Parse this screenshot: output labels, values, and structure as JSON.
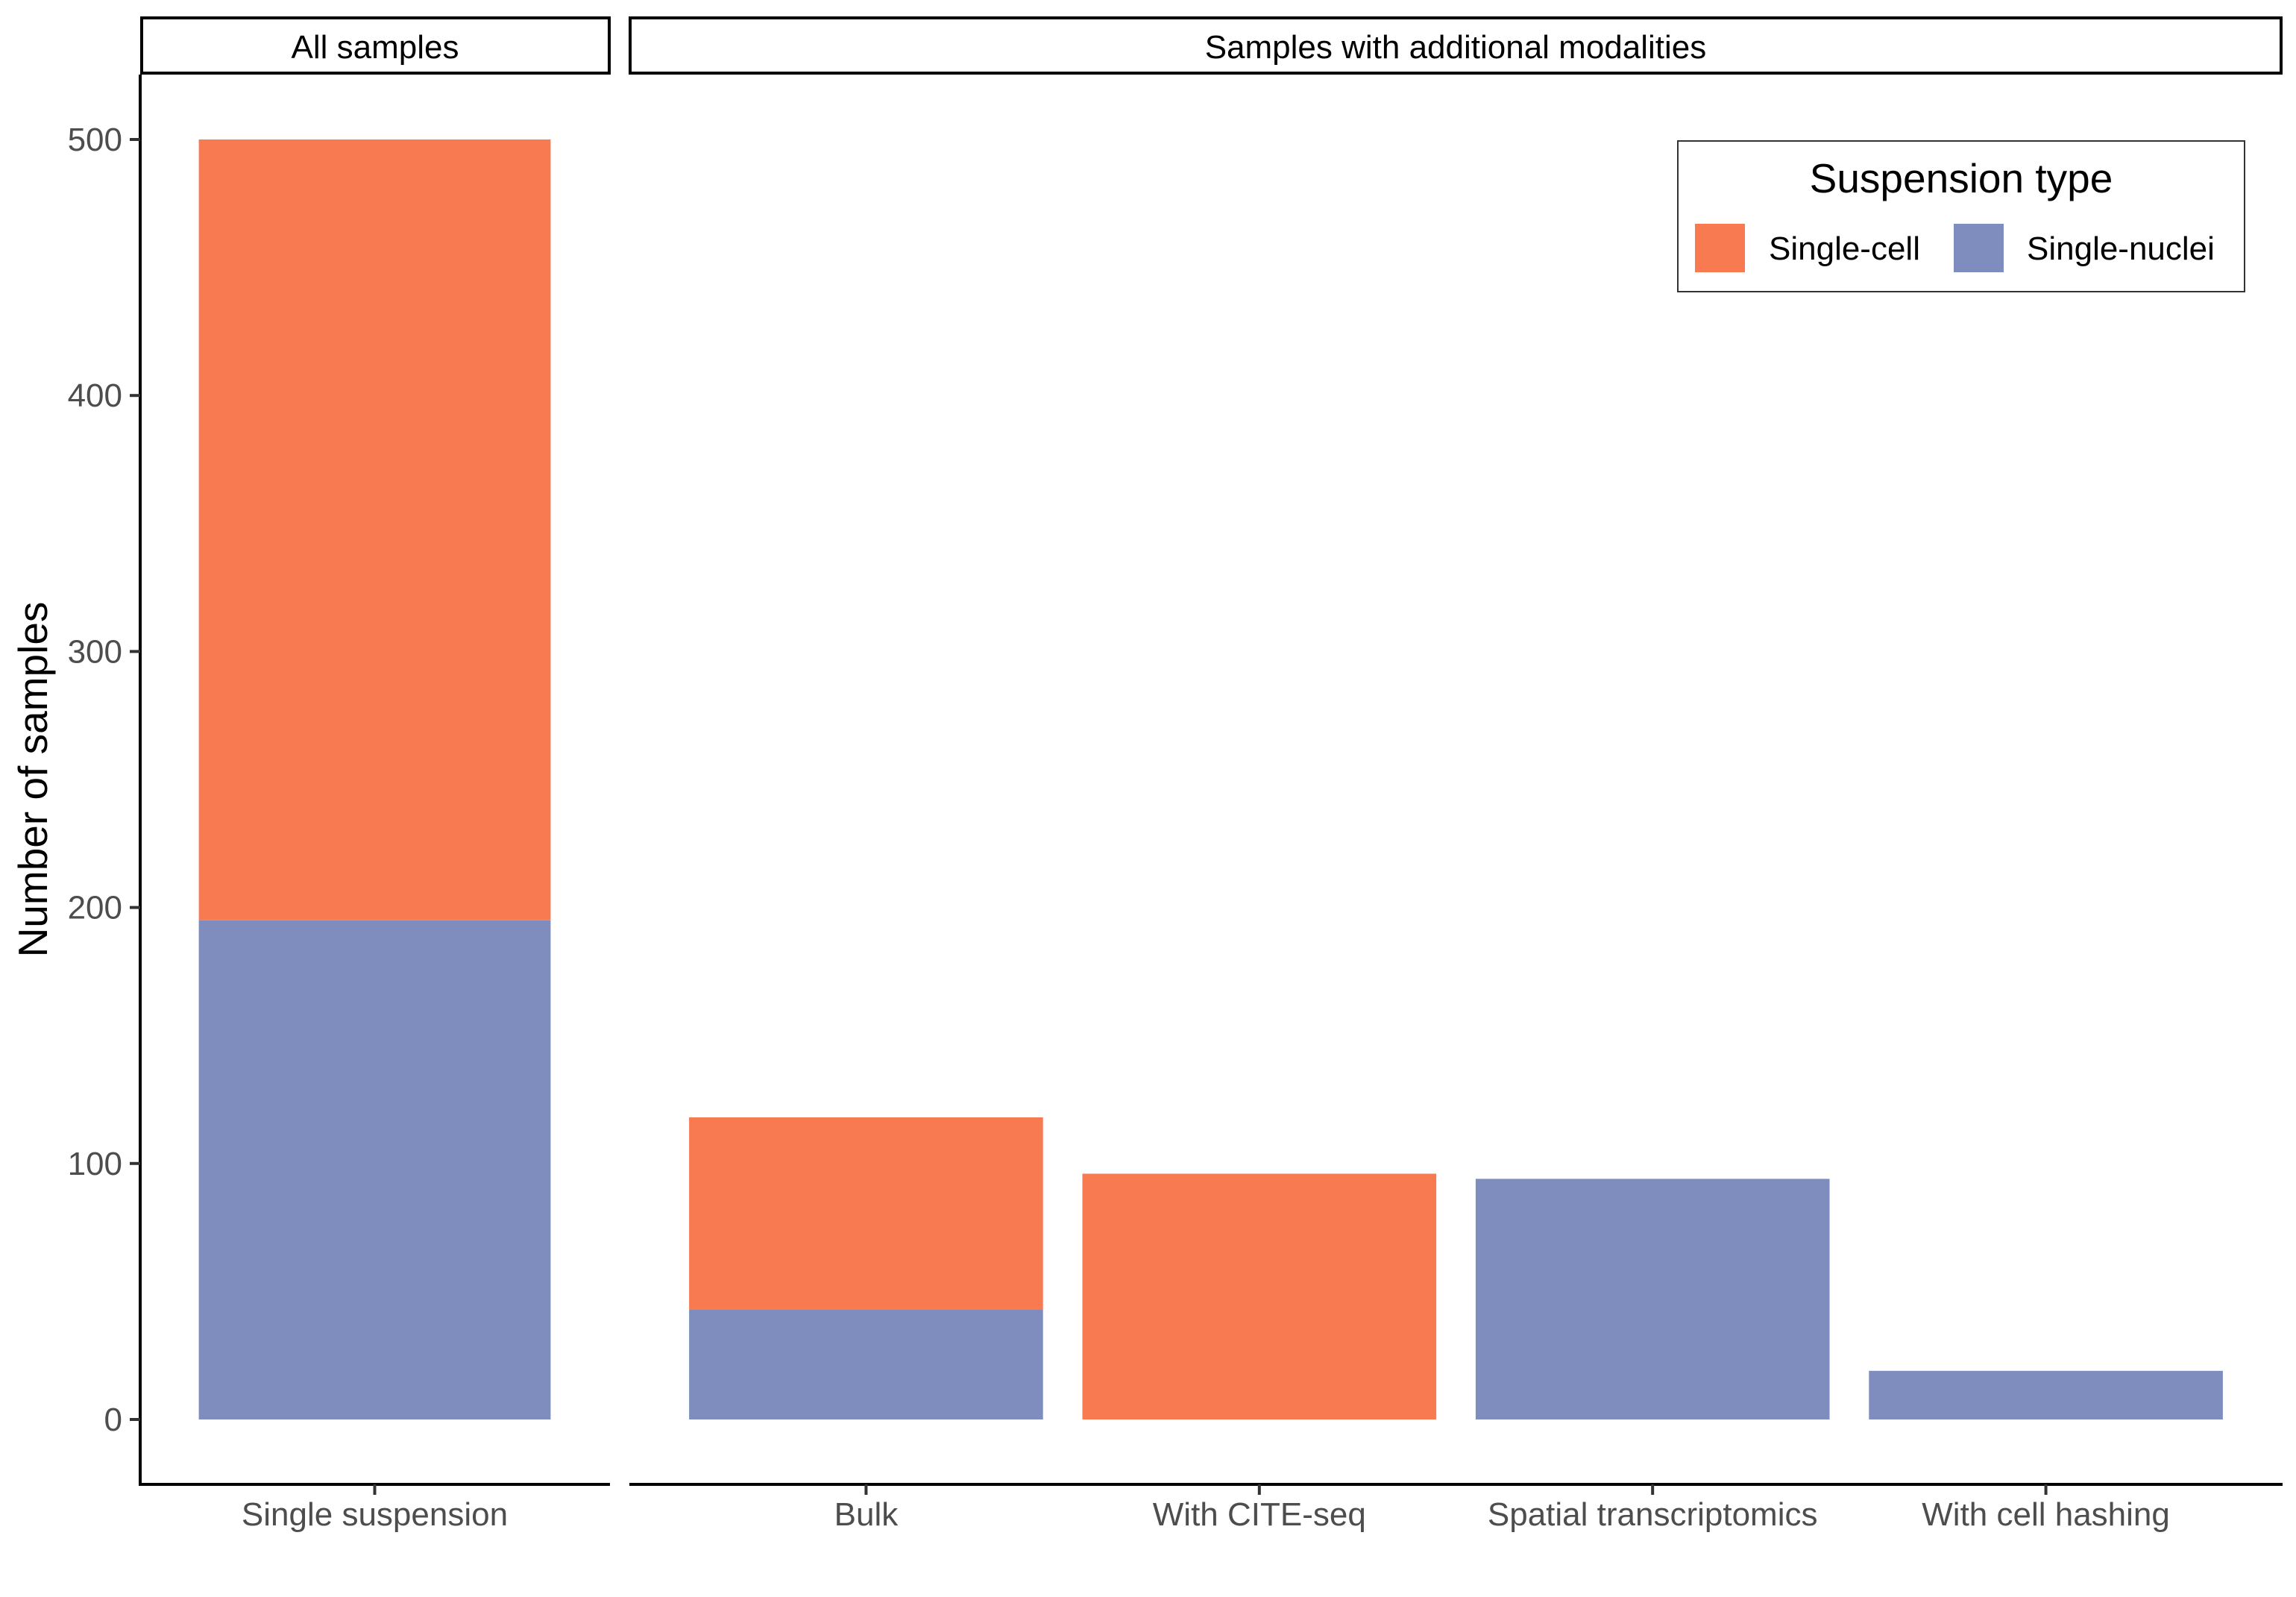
{
  "chart_data": {
    "type": "bar",
    "stacked": true,
    "ylabel": "Number of samples",
    "xlabel": "",
    "ylim": [
      0,
      525
    ],
    "yticks": [
      0,
      100,
      200,
      300,
      400,
      500
    ],
    "grid": false,
    "legend": {
      "title": "Suspension type",
      "placement": "top-right",
      "entries": [
        {
          "key": "single_cell",
          "label": "Single-cell",
          "color": "#F87A51"
        },
        {
          "key": "single_nuclei",
          "label": "Single-nuclei",
          "color": "#7E8DBE"
        }
      ]
    },
    "panels": [
      {
        "strip": "All samples",
        "categories": [
          "Single suspension"
        ],
        "series": [
          {
            "key": "single_nuclei",
            "values": [
              195
            ]
          },
          {
            "key": "single_cell",
            "values": [
              305
            ]
          }
        ]
      },
      {
        "strip": "Samples with additional modalities",
        "categories": [
          "Bulk",
          "With CITE-seq",
          "Spatial transcriptomics",
          "With cell hashing"
        ],
        "series": [
          {
            "key": "single_nuclei",
            "values": [
              43,
              0,
              94,
              19
            ]
          },
          {
            "key": "single_cell",
            "values": [
              75,
              96,
              0,
              0
            ]
          }
        ]
      }
    ]
  }
}
